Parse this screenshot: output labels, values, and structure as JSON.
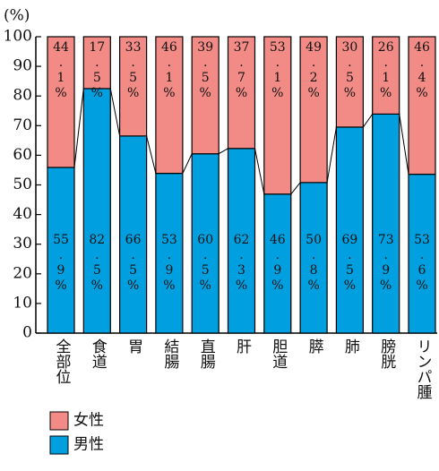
{
  "chart_data": {
    "type": "stacked_bar",
    "y_label": "(%)",
    "categories": [
      "全部位",
      "食道",
      "胃",
      "結腸",
      "直腸",
      "肝",
      "胆道",
      "膵",
      "肺",
      "膀胱",
      "リンパ腫"
    ],
    "series": [
      {
        "name": "男性",
        "color": "#00a0e0",
        "values": [
          55.9,
          82.5,
          66.5,
          53.9,
          60.5,
          62.3,
          46.9,
          50.8,
          69.5,
          73.9,
          53.6
        ],
        "value_labels": [
          "55.9%",
          "82.5%",
          "66.5%",
          "53.9%",
          "60.5%",
          "62.3%",
          "46.9%",
          "50.8%",
          "69.5%",
          "73.9%",
          "53.6%"
        ]
      },
      {
        "name": "女性",
        "color": "#f28b86",
        "values": [
          44.1,
          17.5,
          33.5,
          46.1,
          39.5,
          37.7,
          53.1,
          49.2,
          30.5,
          26.1,
          46.4
        ],
        "value_labels": [
          "44.1%",
          "17.5%",
          "33.5%",
          "46.1%",
          "39.5%",
          "37.7%",
          "53.1%",
          "49.2%",
          "30.5%",
          "26.1%",
          "46.4%"
        ]
      }
    ],
    "ylim": [
      0,
      100
    ],
    "yticks": [
      0,
      10,
      20,
      30,
      40,
      50,
      60,
      70,
      80,
      90,
      100
    ]
  }
}
